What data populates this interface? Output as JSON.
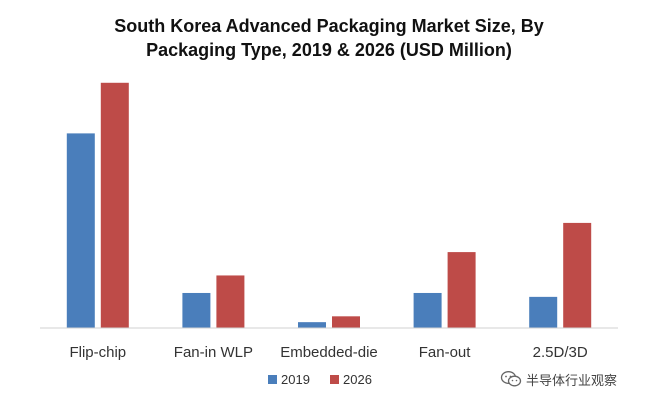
{
  "chart_data": {
    "type": "bar",
    "title_line1": "South Korea Advanced Packaging Market Size, By",
    "title_line2": "Packaging Type, 2019 & 2026 (USD Million)",
    "categories": [
      "Flip-chip",
      "Fan-in WLP",
      "Embedded-die",
      "Fan-out",
      "2.5D/3D"
    ],
    "series": [
      {
        "name": "2019",
        "color": "#4a7ebb",
        "values": [
          100,
          18,
          3,
          18,
          16
        ]
      },
      {
        "name": "2026",
        "color": "#be4b48",
        "values": [
          126,
          27,
          6,
          39,
          54
        ]
      }
    ],
    "ylim": [
      0,
      130
    ],
    "grid": false,
    "legend_position": "bottom-center"
  },
  "watermark": {
    "icon": "wechat-icon",
    "text": "半导体行业观察"
  }
}
